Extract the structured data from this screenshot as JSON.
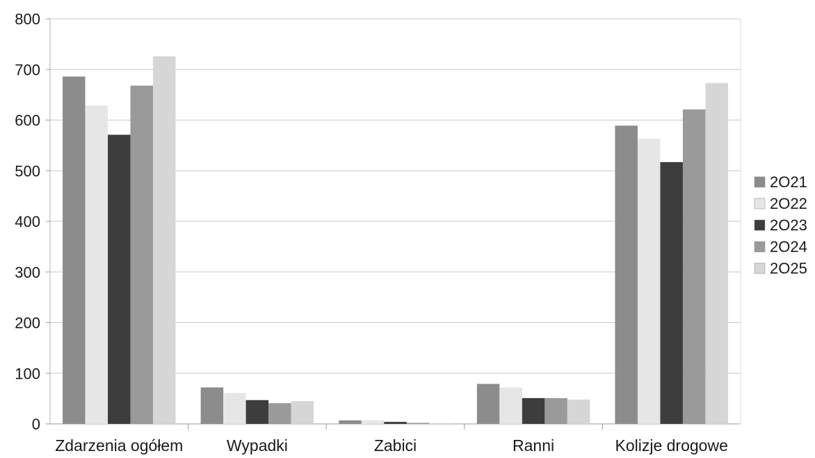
{
  "chart_data": {
    "type": "bar",
    "categories": [
      "Zdarzenia ogółem",
      "Wypadki",
      "Zabici",
      "Ranni",
      "Kolizje drogowe"
    ],
    "series": [
      {
        "name": "2O21",
        "values": [
          686,
          72,
          7,
          79,
          589
        ],
        "color": "#8c8c8c"
      },
      {
        "name": "2O22",
        "values": [
          629,
          61,
          7,
          72,
          563
        ],
        "color": "#e6e6e6"
      },
      {
        "name": "2O23",
        "values": [
          571,
          47,
          4,
          51,
          517
        ],
        "color": "#3d3d3d"
      },
      {
        "name": "2O24",
        "values": [
          668,
          41,
          2,
          51,
          621
        ],
        "color": "#9a9a9a"
      },
      {
        "name": "2O25",
        "values": [
          726,
          45,
          1,
          48,
          673
        ],
        "color": "#d6d6d6"
      }
    ],
    "yticks": [
      0,
      100,
      200,
      300,
      400,
      500,
      600,
      700,
      800
    ],
    "ylim": [
      0,
      800
    ],
    "grid": true,
    "legend": "right"
  }
}
